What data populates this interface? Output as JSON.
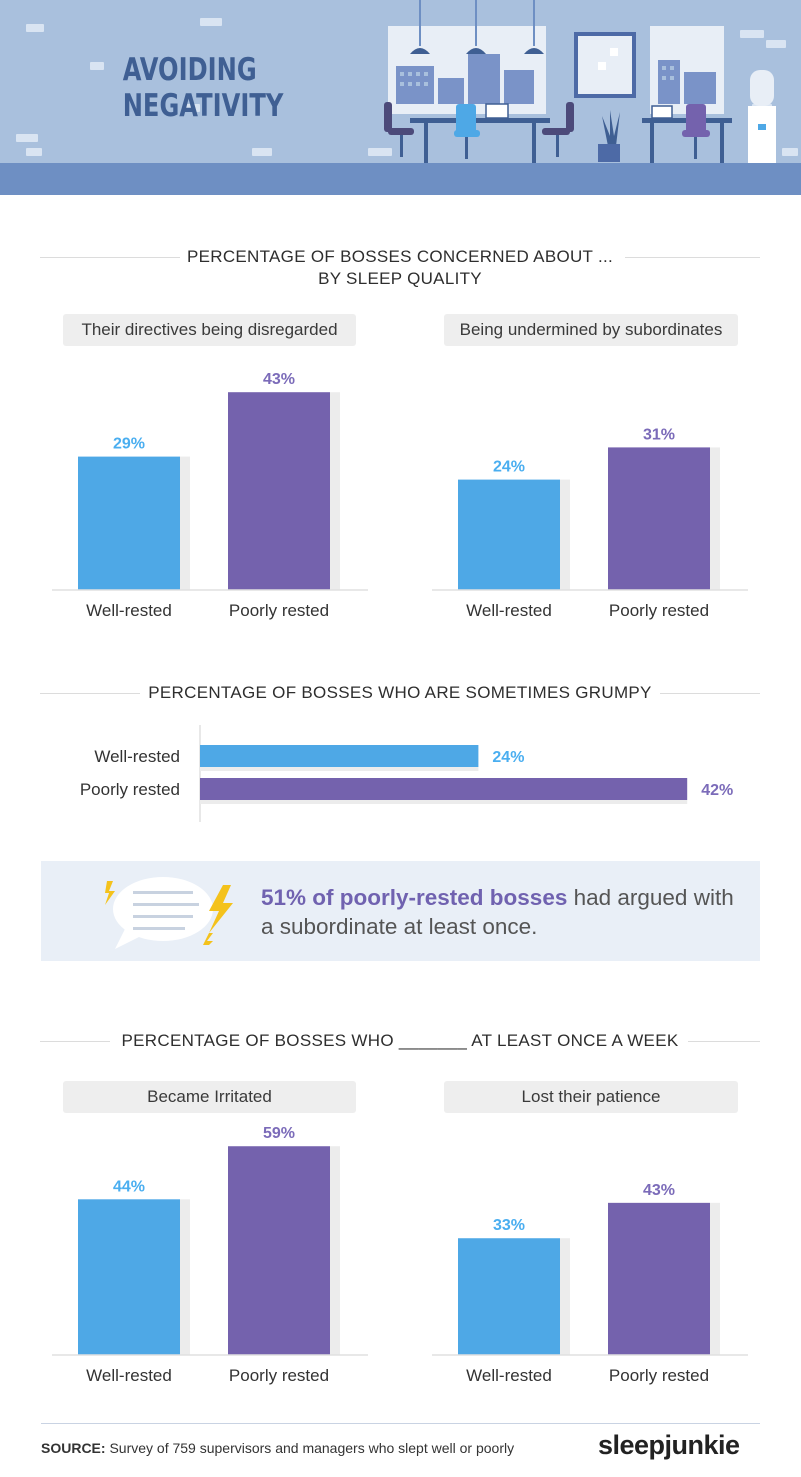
{
  "header": {
    "title_line1": "AVOIDING",
    "title_line2": "NEGATIVITY"
  },
  "colors": {
    "well_rested": "#4ea8e6",
    "poorly_rested": "#7462ad",
    "well_label": "#4aaef0",
    "poor_label": "#7b6bb9"
  },
  "sections": {
    "concerned": {
      "title_line1": "PERCENTAGE OF BOSSES CONCERNED ABOUT ...",
      "title_line2": "BY SLEEP QUALITY"
    },
    "grumpy": {
      "title": "PERCENTAGE OF BOSSES WHO ARE SOMETIMES GRUMPY"
    },
    "weekly": {
      "title": "PERCENTAGE OF BOSSES WHO _______ AT LEAST ONCE A WEEK"
    }
  },
  "chart_data": [
    {
      "type": "bar",
      "title": "Their directives being disregarded",
      "categories": [
        "Well-rested",
        "Poorly rested"
      ],
      "values": [
        29,
        43
      ],
      "value_labels": [
        "29%",
        "43%"
      ],
      "ylim": [
        0,
        50
      ]
    },
    {
      "type": "bar",
      "title": "Being undermined by subordinates",
      "categories": [
        "Well-rested",
        "Poorly rested"
      ],
      "values": [
        24,
        31
      ],
      "value_labels": [
        "24%",
        "31%"
      ],
      "ylim": [
        0,
        50
      ]
    },
    {
      "type": "bar",
      "orientation": "horizontal",
      "title": "PERCENTAGE OF BOSSES WHO ARE SOMETIMES GRUMPY",
      "categories": [
        "Well-rested",
        "Poorly rested"
      ],
      "values": [
        24,
        42
      ],
      "value_labels": [
        "24%",
        "42%"
      ],
      "xlim": [
        0,
        50
      ]
    },
    {
      "type": "bar",
      "title": "Became Irritated",
      "categories": [
        "Well-rested",
        "Poorly rested"
      ],
      "values": [
        44,
        59
      ],
      "value_labels": [
        "44%",
        "59%"
      ],
      "ylim": [
        0,
        65
      ]
    },
    {
      "type": "bar",
      "title": "Lost their patience",
      "categories": [
        "Well-rested",
        "Poorly rested"
      ],
      "values": [
        33,
        43
      ],
      "value_labels": [
        "33%",
        "43%"
      ],
      "ylim": [
        0,
        65
      ]
    }
  ],
  "callout": {
    "highlight": "51% of poorly-rested bosses",
    "rest": " had argued with a subordinate at least once."
  },
  "footer": {
    "source_label": "SOURCE:",
    "source_text": " Survey of 759 supervisors and managers who slept well or poorly",
    "brand": "sleepjunkie"
  }
}
